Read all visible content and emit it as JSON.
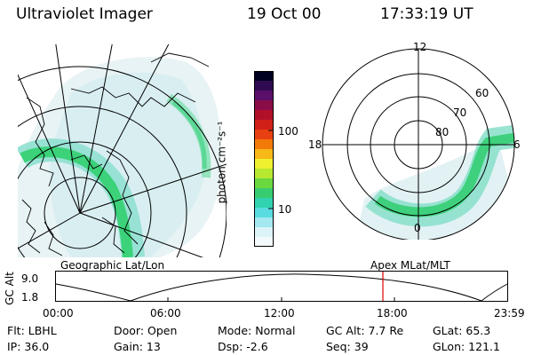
{
  "header": {
    "title": "Ultraviolet Imager",
    "date": "19 Oct 00",
    "time": "17:33:19 UT"
  },
  "colorbar": {
    "unit_label": "photon cm⁻²s⁻¹",
    "ticks": [
      "100",
      "10"
    ],
    "colors": [
      "#000020",
      "#300a50",
      "#5a0f6a",
      "#8a0c48",
      "#b0102a",
      "#d02018",
      "#e84010",
      "#f27a08",
      "#f8b818",
      "#eef030",
      "#b8e830",
      "#6cd840",
      "#38cc70",
      "#30d2b0",
      "#58dce0",
      "#a4e8f0",
      "#dcf4f8",
      "#f4fafc"
    ]
  },
  "polar_plot": {
    "mlt_labels": [
      "12",
      "18",
      "6",
      "0"
    ],
    "lat_labels": [
      "60",
      "70",
      "80"
    ]
  },
  "left_map_label": "Geographic Lat/Lon",
  "right_map_label": "Apex MLat/MLT",
  "altitude_plot": {
    "axis_label": "GC Alt",
    "y_ticks": [
      "9.0",
      "1.8"
    ],
    "x_ticks": [
      "00:00",
      "06:00",
      "12:00",
      "18:00",
      "23:59"
    ],
    "current_marker_time": "17:33",
    "marker_color": "#dd0000"
  },
  "info": {
    "filter": "Flt: LBHL",
    "ip": "IP: 36.0",
    "door": "Door: Open",
    "gain": "Gain: 13",
    "mode": "Mode: Normal",
    "dsp": "Dsp:    -2.6",
    "gc_alt": "GC Alt: 7.7 Re",
    "seq": "Seq: 39",
    "glat": "GLat:  65.3",
    "glon": "GLon: 121.1"
  }
}
